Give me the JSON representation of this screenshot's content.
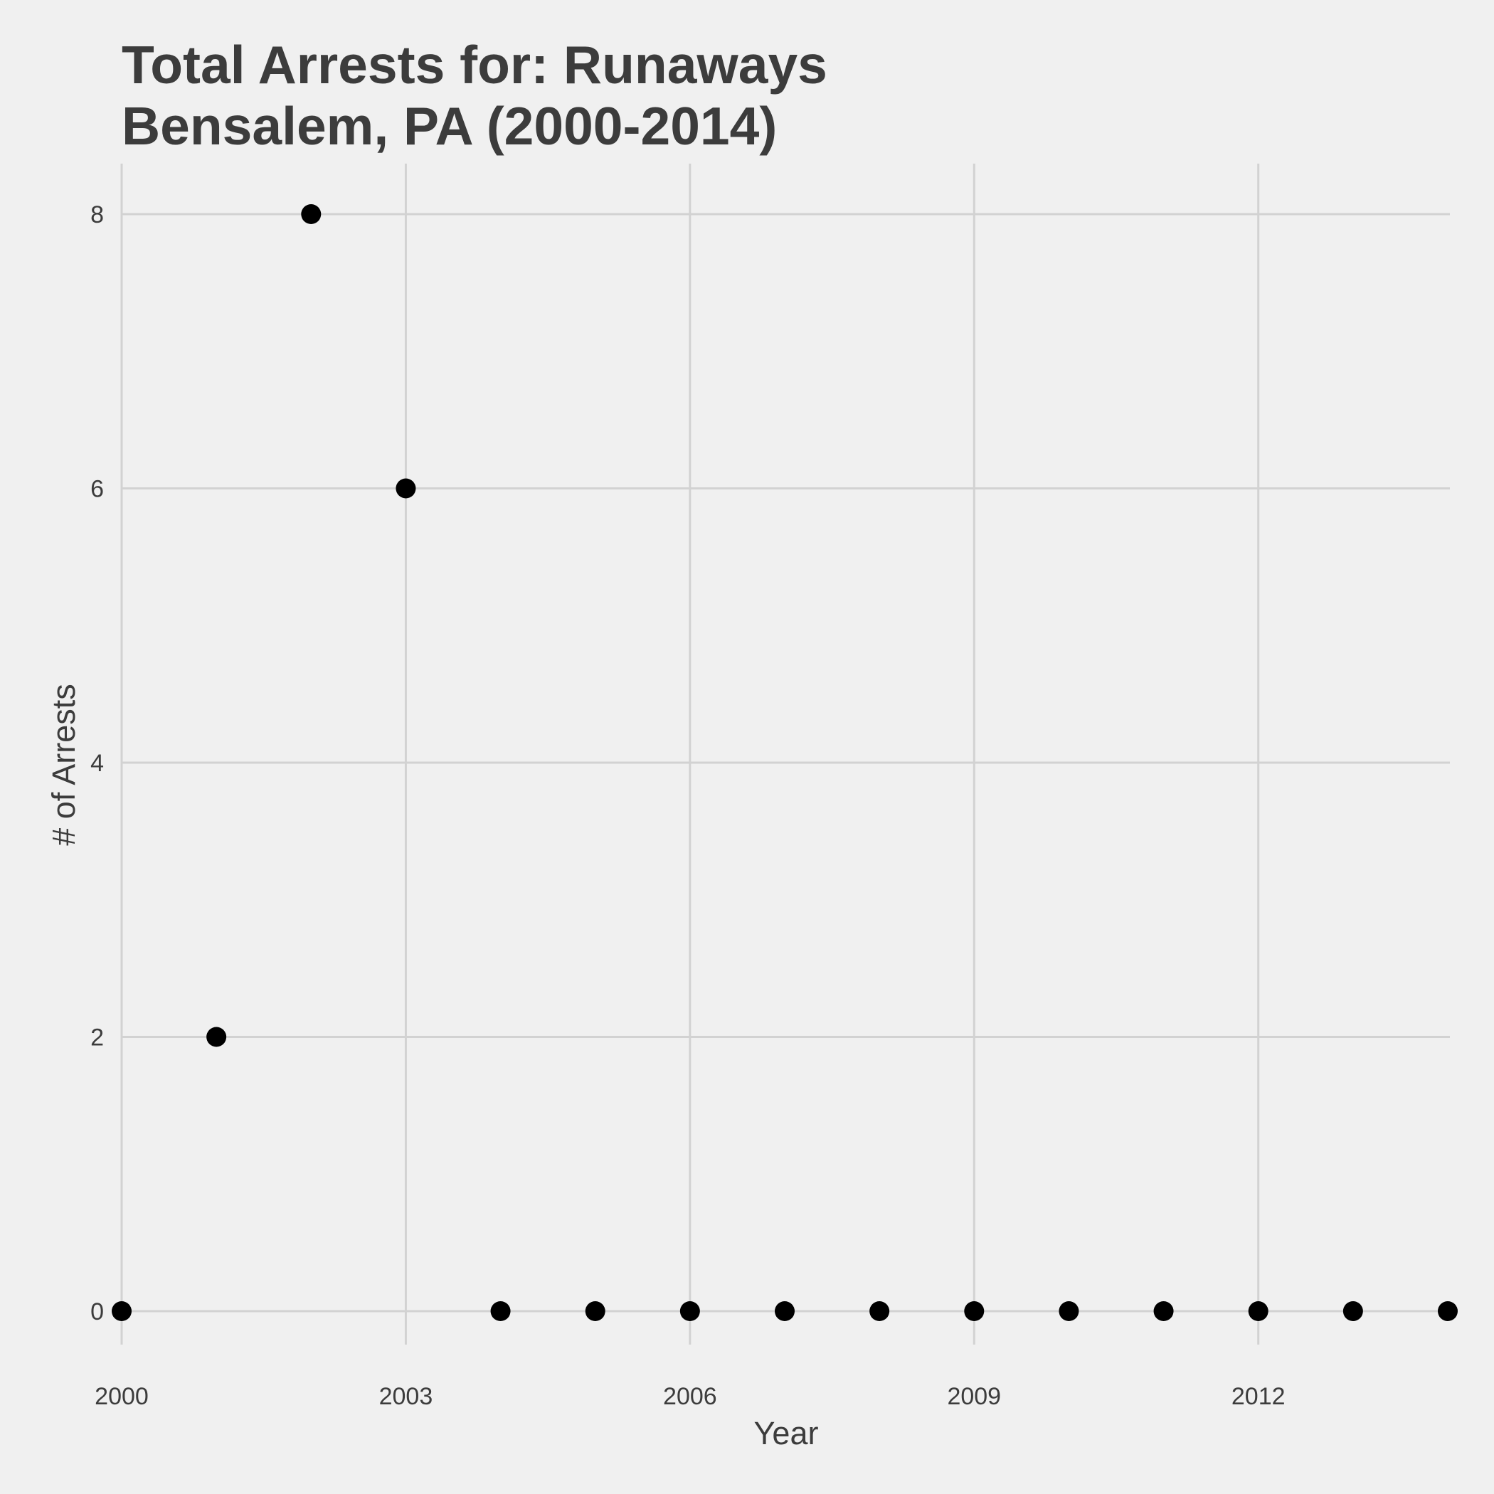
{
  "chart_data": {
    "type": "scatter",
    "title": "Total Arrests for: Runaways",
    "subtitle": "Bensalem, PA (2000-2014)",
    "xlabel": "Year",
    "ylabel": "# of Arrests",
    "x": [
      2000,
      2001,
      2002,
      2003,
      2004,
      2005,
      2006,
      2007,
      2008,
      2009,
      2010,
      2011,
      2012,
      2013,
      2014
    ],
    "y": [
      0,
      2,
      8,
      6,
      0,
      0,
      0,
      0,
      0,
      0,
      0,
      0,
      0,
      0,
      0
    ],
    "xlim": [
      2000,
      2014
    ],
    "ylim": [
      0,
      8
    ],
    "x_ticks": [
      2000,
      2003,
      2006,
      2009,
      2012
    ],
    "y_ticks": [
      0,
      2,
      4,
      6,
      8
    ],
    "grid": true,
    "colors": {
      "background": "#f0f0f0",
      "grid": "#d2d2d2",
      "point": "#000000",
      "text": "#3c3c3c"
    }
  }
}
